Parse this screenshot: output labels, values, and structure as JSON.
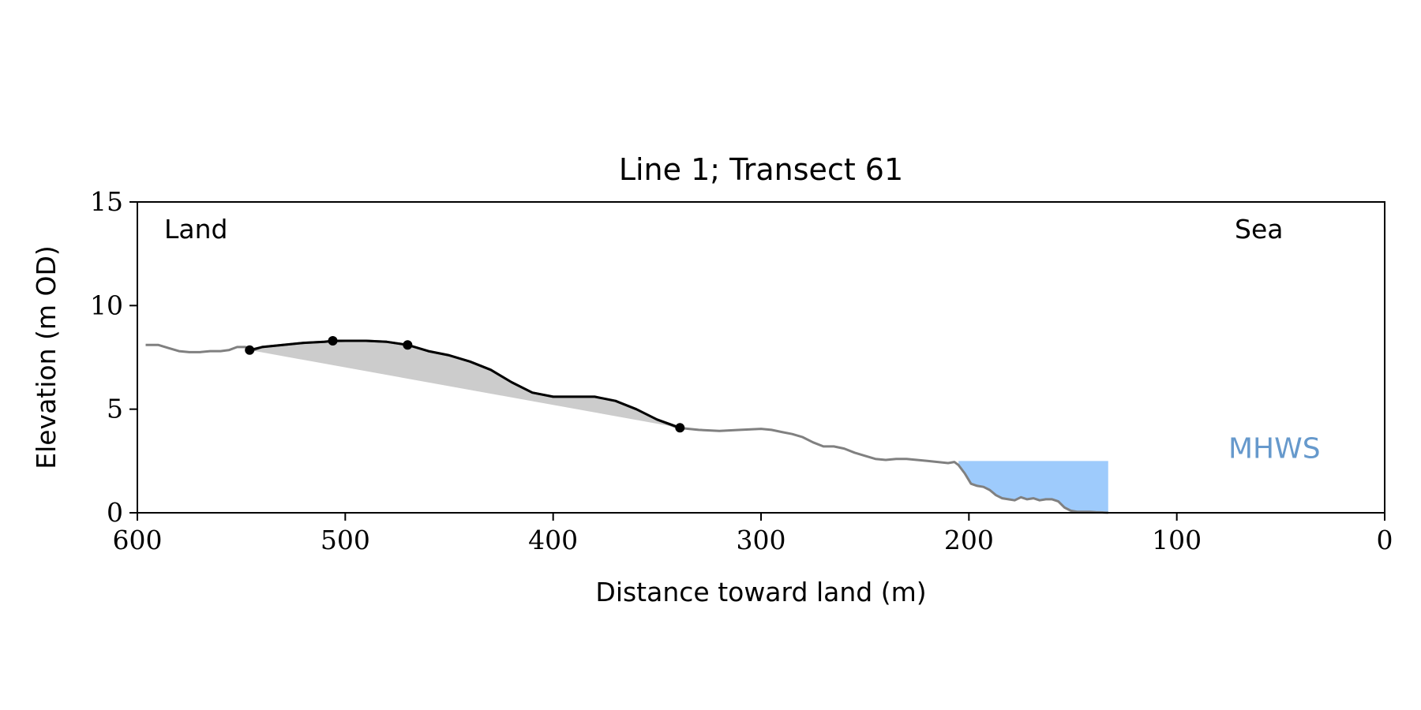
{
  "chart_data": {
    "type": "line",
    "title": "Line 1; Transect 61",
    "xlabel": "Distance toward land (m)",
    "ylabel": "Elevation (m OD)",
    "xlim": [
      600,
      0
    ],
    "ylim": [
      0,
      15
    ],
    "x_ticks": [
      600,
      500,
      400,
      300,
      200,
      100,
      0
    ],
    "y_ticks": [
      0,
      5,
      10,
      15
    ],
    "grid": false,
    "annotations": {
      "land": "Land",
      "sea": "Sea",
      "mhws": "MHWS"
    },
    "colors": {
      "profile": "#808080",
      "dune": "#000000",
      "dune_fill": "#cccccc",
      "water": "#9ecbfc",
      "mhws_text": "#6699cc"
    },
    "mhws_level": 2.5,
    "water_x_range": [
      205,
      133
    ],
    "series": [
      {
        "role": "profile",
        "x": [
          596,
          590,
          585,
          580,
          575,
          570,
          565,
          560,
          556,
          552,
          548,
          544,
          540,
          530,
          520,
          510,
          500,
          490,
          480,
          470,
          460,
          450,
          440,
          430,
          420,
          410,
          400,
          395,
          390,
          380,
          370,
          360,
          350,
          340,
          330,
          320,
          310,
          300,
          295,
          290,
          285,
          280,
          275,
          270,
          265,
          260,
          255,
          250,
          245,
          240,
          235,
          230,
          225,
          220,
          215,
          210,
          207,
          205,
          202,
          199,
          196,
          193,
          190,
          187,
          184,
          181,
          178,
          175,
          172,
          169,
          166,
          163,
          160,
          157,
          154,
          151,
          148,
          145,
          142,
          139,
          136,
          133
        ],
        "y": [
          8.1,
          8.1,
          7.95,
          7.8,
          7.75,
          7.75,
          7.8,
          7.8,
          7.85,
          8.0,
          8.0,
          7.85,
          8.0,
          8.1,
          8.2,
          8.25,
          8.3,
          8.3,
          8.25,
          8.1,
          7.8,
          7.6,
          7.3,
          6.9,
          6.3,
          5.8,
          5.6,
          5.6,
          5.6,
          5.6,
          5.4,
          5.0,
          4.5,
          4.1,
          4.0,
          3.95,
          4.0,
          4.05,
          4.0,
          3.9,
          3.8,
          3.65,
          3.4,
          3.2,
          3.2,
          3.1,
          2.9,
          2.75,
          2.6,
          2.55,
          2.6,
          2.6,
          2.55,
          2.5,
          2.45,
          2.4,
          2.45,
          2.3,
          1.9,
          1.4,
          1.3,
          1.25,
          1.1,
          0.85,
          0.7,
          0.65,
          0.6,
          0.75,
          0.65,
          0.7,
          0.6,
          0.65,
          0.65,
          0.55,
          0.25,
          0.1,
          0.05,
          0.05,
          0.05,
          0.03,
          0.02,
          0.0
        ]
      },
      {
        "role": "dune",
        "x": [
          546,
          540,
          530,
          520,
          510,
          506,
          500,
          490,
          480,
          470,
          460,
          450,
          440,
          430,
          420,
          410,
          400,
          395,
          390,
          380,
          370,
          360,
          350,
          343,
          339
        ],
        "y": [
          7.85,
          8.0,
          8.1,
          8.2,
          8.25,
          8.3,
          8.3,
          8.3,
          8.25,
          8.1,
          7.8,
          7.6,
          7.3,
          6.9,
          6.3,
          5.8,
          5.6,
          5.6,
          5.6,
          5.6,
          5.4,
          5.0,
          4.5,
          4.25,
          4.1
        ]
      }
    ],
    "markers": {
      "x": [
        546,
        506,
        470,
        339
      ],
      "y": [
        7.85,
        8.3,
        8.1,
        4.1
      ]
    }
  }
}
